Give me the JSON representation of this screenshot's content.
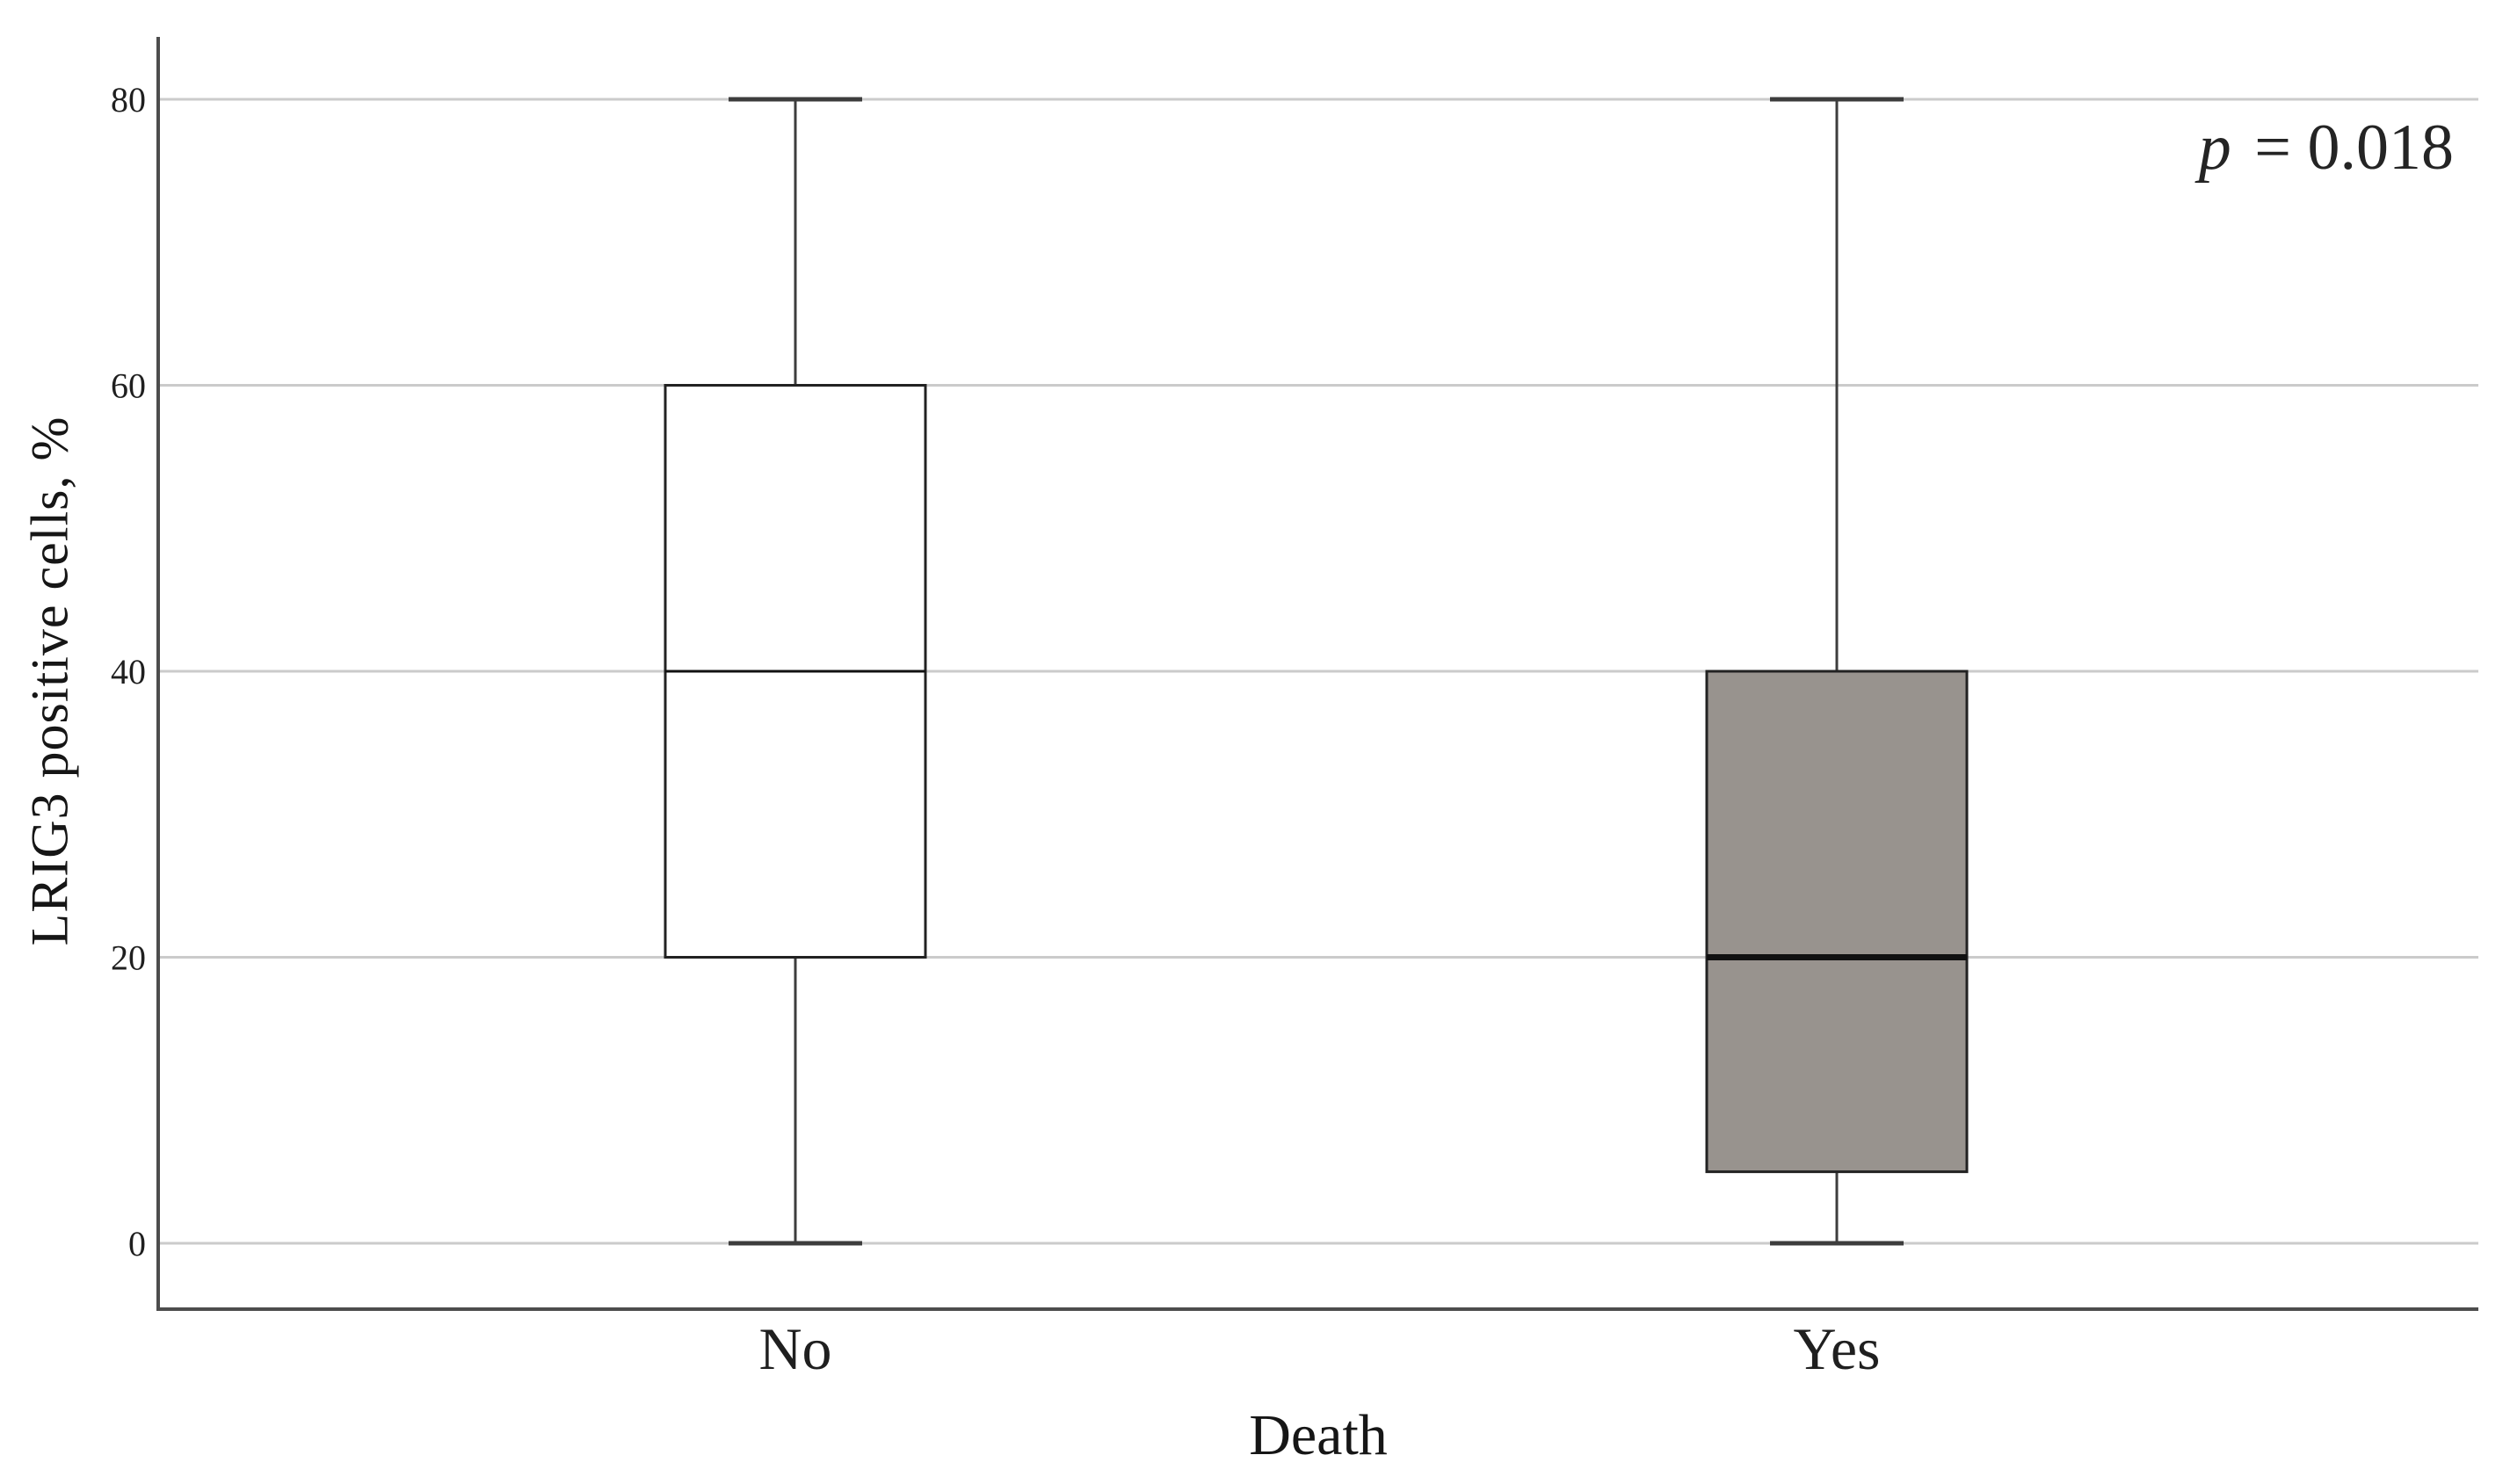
{
  "chart_data": {
    "type": "box",
    "title": "",
    "xlabel": "Death",
    "ylabel": "LRIG3 positive cells, %",
    "categories": [
      "No",
      "Yes"
    ],
    "yticks": [
      0,
      20,
      40,
      60,
      80
    ],
    "ylim": [
      0,
      80
    ],
    "grid": "horizontal",
    "legend": "none",
    "annotation": {
      "symbol": "p",
      "rest": " = 0.018"
    },
    "series": [
      {
        "name": "No",
        "min": 0,
        "q1": 20,
        "median": 40,
        "q3": 60,
        "max": 80,
        "fill": "#ffffff",
        "bold_median": false
      },
      {
        "name": "Yes",
        "min": 0,
        "q1": 5,
        "median": 20,
        "q3": 40,
        "max": 80,
        "fill": "#98938e",
        "bold_median": true
      }
    ],
    "colors": {
      "axis": "#4d4d4d",
      "gridline": "#cbcbcb",
      "box_border": "#222222",
      "whisker": "#3d3d3d",
      "median": "#111111",
      "text": "#1f1f1f"
    }
  }
}
